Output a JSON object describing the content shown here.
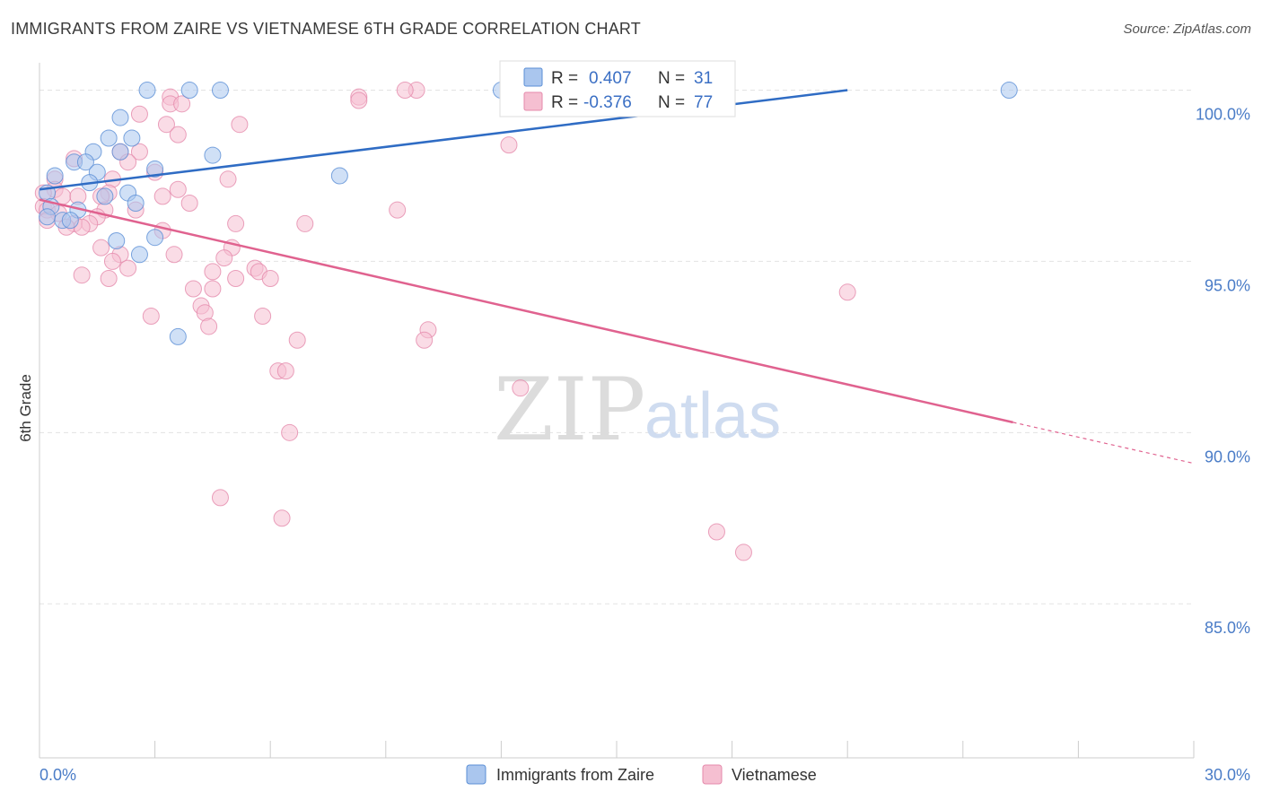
{
  "title": "IMMIGRANTS FROM ZAIRE VS VIETNAMESE 6TH GRADE CORRELATION CHART",
  "source": "Source: ZipAtlas.com",
  "watermark": {
    "zip": "ZIP",
    "atlas": "atlas"
  },
  "colors": {
    "blue": "#5b8fd6",
    "blue_fill": "#aac6ee",
    "blue_line": "#2f6cc4",
    "pink": "#e58aab",
    "pink_fill": "#f5bfd1",
    "pink_line": "#e0628f",
    "tick_text": "#4a7cc7",
    "grid": "#e3e3e3"
  },
  "legend": {
    "r_label": "R =",
    "n_label": "N =",
    "rows": [
      {
        "r": "0.407",
        "n": "31"
      },
      {
        "r": "-0.376",
        "n": "77"
      }
    ]
  },
  "chart_data": {
    "type": "scatter",
    "title": "IMMIGRANTS FROM ZAIRE VS VIETNAMESE 6TH GRADE CORRELATION CHART",
    "xlabel": "",
    "ylabel": "6th Grade",
    "xlim": [
      0,
      30
    ],
    "ylim": [
      80.5,
      100.8
    ],
    "x_tick_labels": [
      "0.0%",
      "30.0%"
    ],
    "x_ticks": [
      0,
      30
    ],
    "y_tick_labels": [
      "85.0%",
      "90.0%",
      "95.0%",
      "100.0%"
    ],
    "y_ticks": [
      85,
      90,
      95,
      100
    ],
    "grid": true,
    "legend_position": "top-center",
    "series": [
      {
        "name": "Immigrants from Zaire",
        "color": "#5b8fd6",
        "r": 0.407,
        "n": 31,
        "trend": {
          "x": [
            0,
            21
          ],
          "y": [
            97.1,
            100.0
          ]
        },
        "points": [
          [
            2.8,
            100.0
          ],
          [
            3.9,
            100.0
          ],
          [
            4.7,
            100.0
          ],
          [
            12.0,
            100.0
          ],
          [
            25.2,
            100.0
          ],
          [
            2.1,
            99.2
          ],
          [
            1.8,
            98.6
          ],
          [
            2.4,
            98.6
          ],
          [
            1.4,
            98.2
          ],
          [
            2.1,
            98.2
          ],
          [
            0.9,
            97.9
          ],
          [
            1.2,
            97.9
          ],
          [
            1.5,
            97.6
          ],
          [
            3.0,
            97.7
          ],
          [
            4.5,
            98.1
          ],
          [
            7.8,
            97.5
          ],
          [
            0.4,
            97.5
          ],
          [
            1.3,
            97.3
          ],
          [
            0.2,
            97.0
          ],
          [
            2.3,
            97.0
          ],
          [
            1.7,
            96.9
          ],
          [
            2.5,
            96.7
          ],
          [
            0.3,
            96.6
          ],
          [
            1.0,
            96.5
          ],
          [
            0.2,
            96.3
          ],
          [
            0.6,
            96.2
          ],
          [
            0.8,
            96.2
          ],
          [
            2.0,
            95.6
          ],
          [
            3.0,
            95.7
          ],
          [
            2.6,
            95.2
          ],
          [
            3.6,
            92.8
          ]
        ]
      },
      {
        "name": "Vietnamese",
        "color": "#e58aab",
        "r": -0.376,
        "n": 77,
        "trend": {
          "x": [
            0,
            25.3
          ],
          "y": [
            96.8,
            90.3
          ]
        },
        "trend_dashed": {
          "x": [
            25.3,
            30
          ],
          "y": [
            90.3,
            89.1
          ]
        },
        "points": [
          [
            9.8,
            100.0
          ],
          [
            3.4,
            99.8
          ],
          [
            8.3,
            99.8
          ],
          [
            8.3,
            99.7
          ],
          [
            3.4,
            99.6
          ],
          [
            3.7,
            99.6
          ],
          [
            2.6,
            99.3
          ],
          [
            3.3,
            99.0
          ],
          [
            5.2,
            99.0
          ],
          [
            3.6,
            98.7
          ],
          [
            12.2,
            98.4
          ],
          [
            2.1,
            98.2
          ],
          [
            2.6,
            98.2
          ],
          [
            0.9,
            98.0
          ],
          [
            2.3,
            97.9
          ],
          [
            3.0,
            97.6
          ],
          [
            4.9,
            97.4
          ],
          [
            0.4,
            97.4
          ],
          [
            1.9,
            97.4
          ],
          [
            0.4,
            97.1
          ],
          [
            3.6,
            97.1
          ],
          [
            1.8,
            97.0
          ],
          [
            0.1,
            97.0
          ],
          [
            0.6,
            96.9
          ],
          [
            1.0,
            96.9
          ],
          [
            3.2,
            96.9
          ],
          [
            1.6,
            96.9
          ],
          [
            3.9,
            96.7
          ],
          [
            0.1,
            96.6
          ],
          [
            0.2,
            96.5
          ],
          [
            1.7,
            96.5
          ],
          [
            2.5,
            96.5
          ],
          [
            9.3,
            96.5
          ],
          [
            0.5,
            96.4
          ],
          [
            1.5,
            96.3
          ],
          [
            0.9,
            96.1
          ],
          [
            1.3,
            96.1
          ],
          [
            5.1,
            96.1
          ],
          [
            6.9,
            96.1
          ],
          [
            1.1,
            96.0
          ],
          [
            0.7,
            96.0
          ],
          [
            3.2,
            95.9
          ],
          [
            5.0,
            95.4
          ],
          [
            1.6,
            95.4
          ],
          [
            2.1,
            95.2
          ],
          [
            3.5,
            95.2
          ],
          [
            4.8,
            95.1
          ],
          [
            1.9,
            95.0
          ],
          [
            2.3,
            94.8
          ],
          [
            5.6,
            94.8
          ],
          [
            5.7,
            94.7
          ],
          [
            4.5,
            94.7
          ],
          [
            1.1,
            94.6
          ],
          [
            1.8,
            94.5
          ],
          [
            5.1,
            94.5
          ],
          [
            6.0,
            94.5
          ],
          [
            4.0,
            94.2
          ],
          [
            4.5,
            94.2
          ],
          [
            21.0,
            94.1
          ],
          [
            4.2,
            93.7
          ],
          [
            4.3,
            93.5
          ],
          [
            2.9,
            93.4
          ],
          [
            5.8,
            93.4
          ],
          [
            4.4,
            93.1
          ],
          [
            10.1,
            93.0
          ],
          [
            10.0,
            92.7
          ],
          [
            6.7,
            92.7
          ],
          [
            6.2,
            91.8
          ],
          [
            6.4,
            91.8
          ],
          [
            12.5,
            91.3
          ],
          [
            6.5,
            90.0
          ],
          [
            4.7,
            88.1
          ],
          [
            6.3,
            87.5
          ],
          [
            17.6,
            87.1
          ],
          [
            18.3,
            86.5
          ],
          [
            0.2,
            96.2
          ],
          [
            9.5,
            100.0
          ]
        ]
      }
    ]
  }
}
